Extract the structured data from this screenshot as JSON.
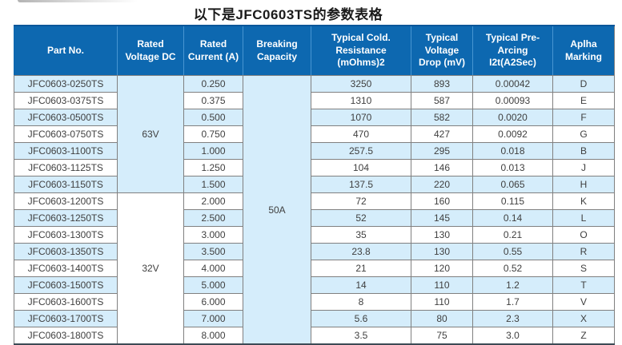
{
  "page": {
    "title": "以下是JFC0603TS的参数表格"
  },
  "colors": {
    "header_bg": "#0d68b0",
    "header_text": "#ffffff",
    "header_divider": "#4795d1",
    "header_border": "#0a569a",
    "row_alt_bg": "#d5edfb",
    "row_bg": "#ffffff",
    "grid_line": "#808080",
    "table_bottom_border": "#3c4a55",
    "cell_text": "#3f3f3f",
    "title_text": "#1a1a1a"
  },
  "table": {
    "columns": [
      {
        "id": "part_no",
        "label": "Part No."
      },
      {
        "id": "rated_voltage",
        "label": "Rated Voltage DC"
      },
      {
        "id": "rated_current",
        "label": "Rated Current (A)"
      },
      {
        "id": "breaking_capacity",
        "label": "Breaking Capacity"
      },
      {
        "id": "cold_resistance",
        "label": "Typical Cold. Resistance (mOhms)2"
      },
      {
        "id": "voltage_drop",
        "label": "Typical Voltage Drop (mV)"
      },
      {
        "id": "pre_arcing",
        "label": "Typical Pre-Arcing I2t(A2Sec)"
      },
      {
        "id": "alpha_marking",
        "label": "Aplha Marking"
      }
    ],
    "merged": {
      "voltage_groups": [
        {
          "label": "63V",
          "row_start": 0,
          "row_count": 7
        },
        {
          "label": "32V",
          "row_start": 7,
          "row_count": 9
        }
      ],
      "breaking_capacity": {
        "label": "50A",
        "row_count": 16
      }
    },
    "rows": [
      {
        "part_no": "JFC0603-0250TS",
        "rated_current": "0.250",
        "cold_resistance": "3250",
        "voltage_drop": "893",
        "pre_arcing": "0.00042",
        "alpha_marking": "D"
      },
      {
        "part_no": "JFC0603-0375TS",
        "rated_current": "0.375",
        "cold_resistance": "1310",
        "voltage_drop": "587",
        "pre_arcing": "0.00093",
        "alpha_marking": "E"
      },
      {
        "part_no": "JFC0603-0500TS",
        "rated_current": "0.500",
        "cold_resistance": "1070",
        "voltage_drop": "582",
        "pre_arcing": "0.0020",
        "alpha_marking": "F"
      },
      {
        "part_no": "JFC0603-0750TS",
        "rated_current": "0.750",
        "cold_resistance": "470",
        "voltage_drop": "427",
        "pre_arcing": "0.0092",
        "alpha_marking": "G"
      },
      {
        "part_no": "JFC0603-1100TS",
        "rated_current": "1.000",
        "cold_resistance": "257.5",
        "voltage_drop": "295",
        "pre_arcing": "0.018",
        "alpha_marking": "B"
      },
      {
        "part_no": "JFC0603-1125TS",
        "rated_current": "1.250",
        "cold_resistance": "104",
        "voltage_drop": "146",
        "pre_arcing": "0.013",
        "alpha_marking": "J"
      },
      {
        "part_no": "JFC0603-1150TS",
        "rated_current": "1.500",
        "cold_resistance": "137.5",
        "voltage_drop": "220",
        "pre_arcing": "0.065",
        "alpha_marking": "H"
      },
      {
        "part_no": "JFC0603-1200TS",
        "rated_current": "2.000",
        "cold_resistance": "72",
        "voltage_drop": "160",
        "pre_arcing": "0.115",
        "alpha_marking": "K"
      },
      {
        "part_no": "JFC0603-1250TS",
        "rated_current": "2.500",
        "cold_resistance": "52",
        "voltage_drop": "145",
        "pre_arcing": "0.14",
        "alpha_marking": "L"
      },
      {
        "part_no": "JFC0603-1300TS",
        "rated_current": "3.000",
        "cold_resistance": "35",
        "voltage_drop": "130",
        "pre_arcing": "0.21",
        "alpha_marking": "O"
      },
      {
        "part_no": "JFC0603-1350TS",
        "rated_current": "3.500",
        "cold_resistance": "23.8",
        "voltage_drop": "130",
        "pre_arcing": "0.55",
        "alpha_marking": "R"
      },
      {
        "part_no": "JFC0603-1400TS",
        "rated_current": "4.000",
        "cold_resistance": "21",
        "voltage_drop": "120",
        "pre_arcing": "0.52",
        "alpha_marking": "S"
      },
      {
        "part_no": "JFC0603-1500TS",
        "rated_current": "5.000",
        "cold_resistance": "14",
        "voltage_drop": "110",
        "pre_arcing": "1.2",
        "alpha_marking": "T"
      },
      {
        "part_no": "JFC0603-1600TS",
        "rated_current": "6.000",
        "cold_resistance": "8",
        "voltage_drop": "110",
        "pre_arcing": "1.7",
        "alpha_marking": "V"
      },
      {
        "part_no": "JFC0603-1700TS",
        "rated_current": "7.000",
        "cold_resistance": "5.6",
        "voltage_drop": "80",
        "pre_arcing": "2.3",
        "alpha_marking": "X"
      },
      {
        "part_no": "JFC0603-1800TS",
        "rated_current": "8.000",
        "cold_resistance": "3.5",
        "voltage_drop": "75",
        "pre_arcing": "3.0",
        "alpha_marking": "Z"
      }
    ]
  }
}
